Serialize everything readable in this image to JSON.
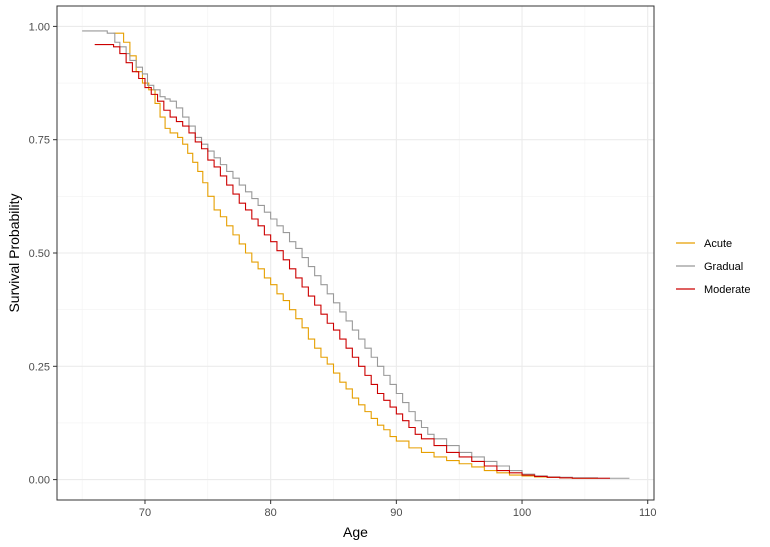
{
  "chart_data": {
    "type": "line",
    "step": true,
    "title": "",
    "xlabel": "Age",
    "ylabel": "Survival Probability",
    "xlim": [
      63,
      110.5
    ],
    "ylim": [
      -0.045,
      1.045
    ],
    "x_ticks": [
      70,
      80,
      90,
      100,
      110
    ],
    "y_ticks": [
      0,
      0.25,
      0.5,
      0.75,
      1
    ],
    "y_tick_labels": [
      "0.00",
      "0.25",
      "0.50",
      "0.75",
      "1.00"
    ],
    "grid": true,
    "legend_position": "right",
    "series": [
      {
        "name": "Acute",
        "color": "#E69F00",
        "points": [
          [
            67.5,
            0.985
          ],
          [
            68.3,
            0.965
          ],
          [
            68.8,
            0.935
          ],
          [
            69.3,
            0.9
          ],
          [
            69.8,
            0.875
          ],
          [
            70.3,
            0.86
          ],
          [
            70.8,
            0.83
          ],
          [
            71.2,
            0.8
          ],
          [
            71.6,
            0.775
          ],
          [
            72,
            0.765
          ],
          [
            72.6,
            0.755
          ],
          [
            73,
            0.74
          ],
          [
            73.4,
            0.72
          ],
          [
            73.8,
            0.7
          ],
          [
            74.2,
            0.68
          ],
          [
            74.6,
            0.655
          ],
          [
            75,
            0.625
          ],
          [
            75.5,
            0.595
          ],
          [
            76,
            0.58
          ],
          [
            76.5,
            0.56
          ],
          [
            77,
            0.54
          ],
          [
            77.5,
            0.52
          ],
          [
            78,
            0.5
          ],
          [
            78.5,
            0.48
          ],
          [
            79,
            0.465
          ],
          [
            79.5,
            0.445
          ],
          [
            80,
            0.43
          ],
          [
            80.5,
            0.41
          ],
          [
            81,
            0.395
          ],
          [
            81.5,
            0.375
          ],
          [
            82,
            0.355
          ],
          [
            82.5,
            0.335
          ],
          [
            83,
            0.31
          ],
          [
            83.5,
            0.29
          ],
          [
            84,
            0.27
          ],
          [
            84.5,
            0.255
          ],
          [
            85,
            0.235
          ],
          [
            85.5,
            0.215
          ],
          [
            86,
            0.2
          ],
          [
            86.5,
            0.18
          ],
          [
            87,
            0.165
          ],
          [
            87.5,
            0.15
          ],
          [
            88,
            0.135
          ],
          [
            88.5,
            0.12
          ],
          [
            89,
            0.11
          ],
          [
            89.5,
            0.095
          ],
          [
            90,
            0.085
          ],
          [
            91,
            0.07
          ],
          [
            92,
            0.06
          ],
          [
            93,
            0.05
          ],
          [
            94,
            0.042
          ],
          [
            95,
            0.035
          ],
          [
            96,
            0.028
          ],
          [
            97,
            0.02
          ],
          [
            98,
            0.015
          ],
          [
            99,
            0.01
          ],
          [
            100,
            0.008
          ],
          [
            101,
            0.006
          ],
          [
            102,
            0.005
          ],
          [
            103,
            0.004
          ],
          [
            104,
            0.003
          ],
          [
            106,
            0.003
          ]
        ]
      },
      {
        "name": "Gradual",
        "color": "#999999",
        "points": [
          [
            65,
            0.99
          ],
          [
            67,
            0.985
          ],
          [
            67.6,
            0.965
          ],
          [
            68,
            0.955
          ],
          [
            68.5,
            0.94
          ],
          [
            68.8,
            0.925
          ],
          [
            69.3,
            0.91
          ],
          [
            69.8,
            0.895
          ],
          [
            70.2,
            0.87
          ],
          [
            70.7,
            0.86
          ],
          [
            71.2,
            0.845
          ],
          [
            71.6,
            0.84
          ],
          [
            72,
            0.835
          ],
          [
            72.5,
            0.82
          ],
          [
            73,
            0.8
          ],
          [
            73.5,
            0.78
          ],
          [
            74,
            0.755
          ],
          [
            74.5,
            0.74
          ],
          [
            75,
            0.725
          ],
          [
            75.5,
            0.71
          ],
          [
            76,
            0.695
          ],
          [
            76.5,
            0.68
          ],
          [
            77,
            0.665
          ],
          [
            77.5,
            0.65
          ],
          [
            78,
            0.635
          ],
          [
            78.5,
            0.62
          ],
          [
            79,
            0.605
          ],
          [
            79.5,
            0.59
          ],
          [
            80,
            0.575
          ],
          [
            80.5,
            0.56
          ],
          [
            81,
            0.545
          ],
          [
            81.5,
            0.525
          ],
          [
            82,
            0.51
          ],
          [
            82.5,
            0.49
          ],
          [
            83,
            0.47
          ],
          [
            83.5,
            0.45
          ],
          [
            84,
            0.43
          ],
          [
            84.5,
            0.41
          ],
          [
            85,
            0.39
          ],
          [
            85.5,
            0.37
          ],
          [
            86,
            0.35
          ],
          [
            86.5,
            0.33
          ],
          [
            87,
            0.31
          ],
          [
            87.5,
            0.29
          ],
          [
            88,
            0.27
          ],
          [
            88.5,
            0.25
          ],
          [
            89,
            0.23
          ],
          [
            89.5,
            0.21
          ],
          [
            90,
            0.19
          ],
          [
            90.5,
            0.17
          ],
          [
            91,
            0.15
          ],
          [
            91.5,
            0.13
          ],
          [
            92,
            0.115
          ],
          [
            92.5,
            0.1
          ],
          [
            93,
            0.09
          ],
          [
            94,
            0.075
          ],
          [
            95,
            0.06
          ],
          [
            96,
            0.05
          ],
          [
            97,
            0.04
          ],
          [
            98,
            0.03
          ],
          [
            99,
            0.02
          ],
          [
            100,
            0.012
          ],
          [
            101,
            0.008
          ],
          [
            102,
            0.006
          ],
          [
            103,
            0.005
          ],
          [
            104,
            0.004
          ],
          [
            106,
            0.003
          ],
          [
            108.5,
            0.002
          ]
        ]
      },
      {
        "name": "Moderate",
        "color": "#CC0000",
        "points": [
          [
            66,
            0.96
          ],
          [
            67.5,
            0.955
          ],
          [
            68,
            0.94
          ],
          [
            68.5,
            0.92
          ],
          [
            69,
            0.9
          ],
          [
            69.5,
            0.885
          ],
          [
            70,
            0.865
          ],
          [
            70.5,
            0.85
          ],
          [
            71,
            0.835
          ],
          [
            71.5,
            0.815
          ],
          [
            72,
            0.8
          ],
          [
            72.5,
            0.79
          ],
          [
            73,
            0.78
          ],
          [
            73.5,
            0.765
          ],
          [
            74,
            0.745
          ],
          [
            74.5,
            0.73
          ],
          [
            75,
            0.705
          ],
          [
            75.5,
            0.69
          ],
          [
            76,
            0.67
          ],
          [
            76.5,
            0.65
          ],
          [
            77,
            0.63
          ],
          [
            77.5,
            0.61
          ],
          [
            78,
            0.595
          ],
          [
            78.5,
            0.575
          ],
          [
            79,
            0.56
          ],
          [
            79.5,
            0.54
          ],
          [
            80,
            0.525
          ],
          [
            80.5,
            0.505
          ],
          [
            81,
            0.485
          ],
          [
            81.5,
            0.465
          ],
          [
            82,
            0.445
          ],
          [
            82.5,
            0.425
          ],
          [
            83,
            0.405
          ],
          [
            83.5,
            0.385
          ],
          [
            84,
            0.365
          ],
          [
            84.5,
            0.345
          ],
          [
            85,
            0.33
          ],
          [
            85.5,
            0.31
          ],
          [
            86,
            0.29
          ],
          [
            86.5,
            0.27
          ],
          [
            87,
            0.25
          ],
          [
            87.5,
            0.23
          ],
          [
            88,
            0.21
          ],
          [
            88.5,
            0.19
          ],
          [
            89,
            0.175
          ],
          [
            89.5,
            0.16
          ],
          [
            90,
            0.145
          ],
          [
            90.5,
            0.13
          ],
          [
            91,
            0.115
          ],
          [
            91.5,
            0.1
          ],
          [
            92,
            0.09
          ],
          [
            93,
            0.075
          ],
          [
            94,
            0.06
          ],
          [
            95,
            0.05
          ],
          [
            96,
            0.04
          ],
          [
            97,
            0.03
          ],
          [
            98,
            0.02
          ],
          [
            99,
            0.015
          ],
          [
            100,
            0.01
          ],
          [
            101,
            0.007
          ],
          [
            102,
            0.005
          ],
          [
            103,
            0.004
          ],
          [
            104,
            0.003
          ],
          [
            107,
            0.003
          ]
        ]
      }
    ]
  }
}
